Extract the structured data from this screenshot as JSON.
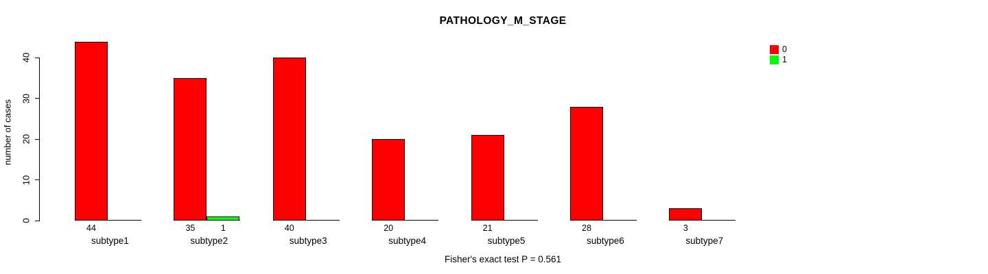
{
  "chart_data": {
    "type": "bar",
    "title": "PATHOLOGY_M_STAGE",
    "ylabel": "number of cases",
    "xlabel": "",
    "footnote": "Fisher's exact test P = 0.561",
    "categories": [
      "subtype1",
      "subtype2",
      "subtype3",
      "subtype4",
      "subtype5",
      "subtype6",
      "subtype7"
    ],
    "series": [
      {
        "name": "0",
        "color": "#FF0000",
        "values": [
          44,
          35,
          40,
          20,
          21,
          28,
          3
        ]
      },
      {
        "name": "1",
        "color": "#00FF00",
        "values": [
          0,
          1,
          0,
          0,
          0,
          0,
          0
        ]
      }
    ],
    "visible_value_labels": [
      "44",
      "35",
      "1",
      "40",
      "20",
      "21",
      "28",
      "3"
    ],
    "yticks": [
      0,
      10,
      20,
      30,
      40
    ],
    "ylim": [
      0,
      45
    ],
    "grid": false,
    "legend_position": "top-right",
    "colors": {
      "background": "#FFFFFF",
      "axis": "#000000",
      "text": "#000000",
      "bar_border": "#000000"
    }
  }
}
